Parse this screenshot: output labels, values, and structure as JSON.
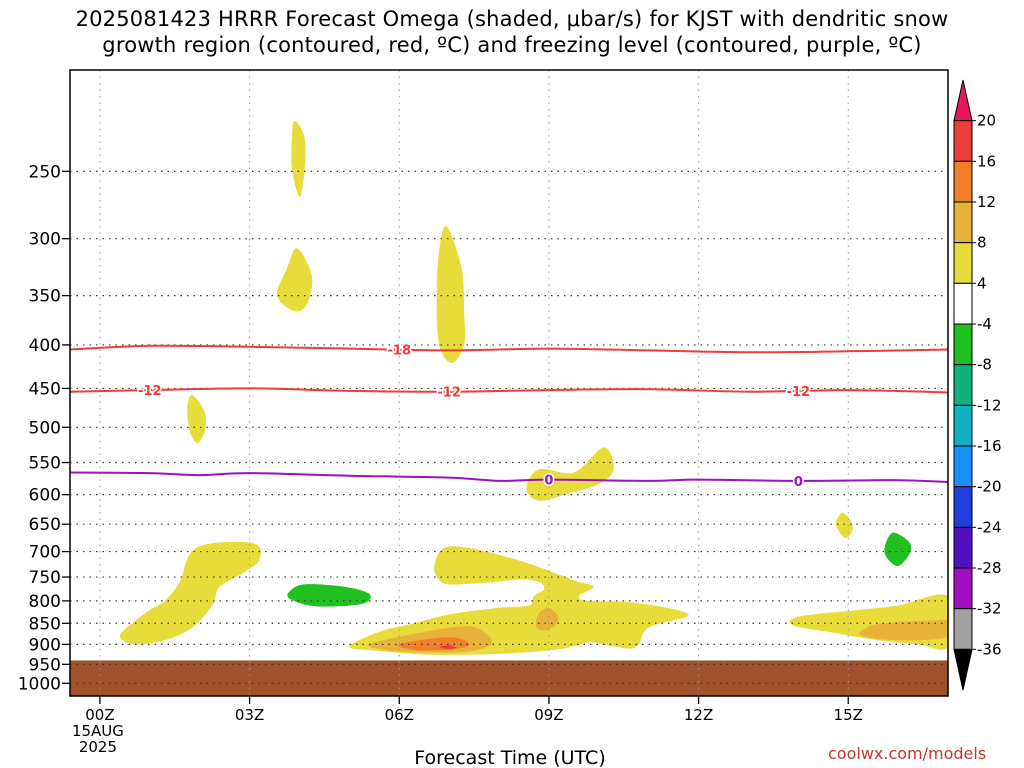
{
  "title_lines": [
    "2025081423 HRRR Forecast Omega (shaded, μbar/s) for KJST with dendritic snow",
    "growth region (contoured, red, ºC) and freezing level (contoured, purple, ºC)"
  ],
  "credit": "coolwx.com/models",
  "chart_data": {
    "type": "contour",
    "xlabel": "Forecast Time (UTC)",
    "x_ticks": [
      {
        "hour": 0,
        "label": "00Z",
        "sub": [
          "15AUG",
          "2025"
        ]
      },
      {
        "hour": 3,
        "label": "03Z"
      },
      {
        "hour": 6,
        "label": "06Z"
      },
      {
        "hour": 9,
        "label": "09Z"
      },
      {
        "hour": 12,
        "label": "12Z"
      },
      {
        "hour": 15,
        "label": "15Z"
      }
    ],
    "xlim": [
      -0.6,
      17
    ],
    "y_ticks": [
      250,
      300,
      350,
      400,
      450,
      500,
      550,
      600,
      650,
      700,
      750,
      800,
      850,
      900,
      950,
      1000
    ],
    "ylim_hPa": [
      190,
      1035
    ],
    "y_scale": "log-pressure",
    "grid": "dotted",
    "terrain": {
      "color": "#a0522d",
      "top_hPa": 940
    },
    "colorbar": {
      "labels": [
        "20",
        "16",
        "12",
        "8",
        "4",
        "-4",
        "-8",
        "-12",
        "-16",
        "-20",
        "-24",
        "-28",
        "-32",
        "-36"
      ],
      "colors": [
        "#e8175d",
        "#ee3b3b",
        "#f07f2a",
        "#e8b23a",
        "#e8dc3a",
        "#ffffff",
        "#20c020",
        "#10b07a",
        "#10b0c0",
        "#1a90ff",
        "#2040e0",
        "#5010c0",
        "#a010c0",
        "#a0a0a0",
        "#000000"
      ]
    },
    "omega_regions": [
      {
        "level": 4,
        "color": "#e8dc3a",
        "points": [
          [
            3.9,
            218
          ],
          [
            4.1,
            228
          ],
          [
            4.1,
            250
          ],
          [
            4.0,
            268
          ],
          [
            3.85,
            248
          ],
          [
            3.85,
            228
          ]
        ]
      },
      {
        "level": 4,
        "color": "#e8dc3a",
        "points": [
          [
            3.95,
            308
          ],
          [
            4.25,
            332
          ],
          [
            4.15,
            358
          ],
          [
            3.9,
            365
          ],
          [
            3.55,
            350
          ],
          [
            3.75,
            325
          ]
        ]
      },
      {
        "level": 4,
        "color": "#e8dc3a",
        "points": [
          [
            6.95,
            290
          ],
          [
            7.25,
            325
          ],
          [
            7.3,
            365
          ],
          [
            7.3,
            400
          ],
          [
            7.05,
            420
          ],
          [
            6.8,
            400
          ],
          [
            6.75,
            350
          ],
          [
            6.8,
            310
          ]
        ]
      },
      {
        "level": 4,
        "color": "#e8dc3a",
        "points": [
          [
            1.85,
            458
          ],
          [
            2.1,
            480
          ],
          [
            2.1,
            505
          ],
          [
            1.95,
            522
          ],
          [
            1.8,
            505
          ],
          [
            1.75,
            475
          ]
        ]
      },
      {
        "level": 4,
        "color": "#e8dc3a",
        "points": [
          [
            9.5,
            565
          ],
          [
            10.1,
            528
          ],
          [
            10.3,
            560
          ],
          [
            10.0,
            583
          ],
          [
            9.4,
            598
          ],
          [
            8.8,
            610
          ],
          [
            8.55,
            590
          ],
          [
            8.8,
            560
          ]
        ]
      },
      {
        "level": 4,
        "color": "#e8dc3a",
        "points": [
          [
            14.9,
            630
          ],
          [
            15.1,
            655
          ],
          [
            14.95,
            675
          ],
          [
            14.75,
            650
          ]
        ]
      },
      {
        "level": 4,
        "color": "#e8dc3a",
        "points": [
          [
            1.8,
            705
          ],
          [
            2.2,
            685
          ],
          [
            3.1,
            685
          ],
          [
            3.2,
            715
          ],
          [
            2.9,
            740
          ],
          [
            2.4,
            770
          ],
          [
            2.25,
            810
          ],
          [
            1.85,
            860
          ],
          [
            1.3,
            890
          ],
          [
            0.7,
            900
          ],
          [
            0.4,
            880
          ],
          [
            0.7,
            845
          ],
          [
            1.0,
            820
          ],
          [
            1.3,
            800
          ],
          [
            1.6,
            760
          ]
        ]
      },
      {
        "level": 4,
        "color": "#e8dc3a",
        "points": [
          [
            6.7,
            730
          ],
          [
            6.9,
            693
          ],
          [
            7.5,
            695
          ],
          [
            8.5,
            720
          ],
          [
            9.2,
            745
          ],
          [
            9.6,
            760
          ],
          [
            9.9,
            770
          ],
          [
            9.6,
            790
          ],
          [
            9.8,
            800
          ],
          [
            10.8,
            805
          ],
          [
            11.8,
            830
          ],
          [
            11.0,
            860
          ],
          [
            10.8,
            900
          ],
          [
            10.6,
            910
          ],
          [
            10.1,
            900
          ],
          [
            9.8,
            895
          ],
          [
            9.3,
            910
          ],
          [
            8.5,
            920
          ],
          [
            7.5,
            925
          ],
          [
            6.5,
            925
          ],
          [
            5.5,
            915
          ],
          [
            5.0,
            905
          ],
          [
            5.6,
            870
          ],
          [
            6.3,
            850
          ],
          [
            7.0,
            830
          ],
          [
            8.0,
            815
          ],
          [
            8.6,
            810
          ],
          [
            8.7,
            790
          ],
          [
            8.9,
            775
          ],
          [
            8.8,
            760
          ],
          [
            8.4,
            755
          ],
          [
            7.7,
            762
          ],
          [
            7.0,
            765
          ],
          [
            6.8,
            755
          ]
        ]
      },
      {
        "level": 4,
        "color": "#e8dc3a",
        "points": [
          [
            14.0,
            835
          ],
          [
            15.2,
            820
          ],
          [
            16.0,
            810
          ],
          [
            17.0,
            790
          ],
          [
            17.0,
            905
          ],
          [
            16.4,
            900
          ],
          [
            15.6,
            890
          ],
          [
            14.6,
            870
          ],
          [
            13.9,
            855
          ]
        ]
      },
      {
        "level": 8,
        "color": "#e8b23a",
        "points": [
          [
            8.8,
            828
          ],
          [
            9.0,
            815
          ],
          [
            9.2,
            840
          ],
          [
            9.0,
            865
          ],
          [
            8.75,
            860
          ]
        ]
      },
      {
        "level": 8,
        "color": "#e8b23a",
        "points": [
          [
            5.4,
            900
          ],
          [
            6.5,
            870
          ],
          [
            7.4,
            857
          ],
          [
            7.8,
            880
          ],
          [
            7.8,
            905
          ],
          [
            7.3,
            918
          ],
          [
            6.5,
            920
          ],
          [
            5.8,
            915
          ]
        ]
      },
      {
        "level": 8,
        "color": "#e8b23a",
        "points": [
          [
            15.3,
            865
          ],
          [
            15.7,
            850
          ],
          [
            16.8,
            843
          ],
          [
            17.0,
            845
          ],
          [
            17.0,
            880
          ],
          [
            16.4,
            890
          ],
          [
            15.7,
            888
          ],
          [
            15.25,
            878
          ]
        ]
      },
      {
        "level": 12,
        "color": "#f07f2a",
        "points": [
          [
            6.0,
            900
          ],
          [
            6.7,
            885
          ],
          [
            7.2,
            885
          ],
          [
            7.4,
            900
          ],
          [
            7.2,
            910
          ],
          [
            6.6,
            915
          ],
          [
            6.2,
            912
          ]
        ]
      },
      {
        "level": 16,
        "color": "#ee3b3b",
        "points": [
          [
            6.8,
            906
          ],
          [
            7.0,
            902
          ],
          [
            7.15,
            908
          ],
          [
            7.0,
            912
          ]
        ]
      },
      {
        "level": -8,
        "color": "#20c020",
        "points": [
          [
            3.8,
            780
          ],
          [
            4.1,
            765
          ],
          [
            4.9,
            770
          ],
          [
            5.4,
            785
          ],
          [
            5.3,
            805
          ],
          [
            4.7,
            812
          ],
          [
            4.2,
            810
          ],
          [
            3.8,
            795
          ]
        ]
      },
      {
        "level": -8,
        "color": "#20c020",
        "points": [
          [
            15.9,
            665
          ],
          [
            16.2,
            680
          ],
          [
            16.25,
            700
          ],
          [
            16.0,
            728
          ],
          [
            15.75,
            708
          ],
          [
            15.75,
            685
          ]
        ]
      }
    ],
    "contours": [
      {
        "label": "-18",
        "color": "#ee3b3b",
        "label_hours": [
          6.0
        ],
        "points": [
          [
            -0.6,
            405
          ],
          [
            1,
            401
          ],
          [
            3,
            402
          ],
          [
            5,
            404
          ],
          [
            7,
            406
          ],
          [
            9,
            404
          ],
          [
            11,
            406
          ],
          [
            13,
            408
          ],
          [
            15,
            407
          ],
          [
            17,
            405
          ]
        ]
      },
      {
        "label": "-12",
        "color": "#ee3b3b",
        "label_hours": [
          1.0,
          7.0,
          14.0
        ],
        "points": [
          [
            -0.6,
            454
          ],
          [
            1,
            452
          ],
          [
            3,
            450
          ],
          [
            5,
            453
          ],
          [
            7,
            454
          ],
          [
            9,
            452
          ],
          [
            11,
            451
          ],
          [
            13,
            454
          ],
          [
            15,
            452
          ],
          [
            17,
            455
          ]
        ]
      },
      {
        "label": "0",
        "color": "#9b10c8",
        "label_hours": [
          9.0,
          14.0
        ],
        "points": [
          [
            -0.6,
            565
          ],
          [
            1,
            566
          ],
          [
            2,
            569
          ],
          [
            3,
            566
          ],
          [
            5,
            570
          ],
          [
            7,
            573
          ],
          [
            8,
            578
          ],
          [
            9,
            576
          ],
          [
            11,
            578
          ],
          [
            12,
            576
          ],
          [
            14,
            578
          ],
          [
            16,
            577
          ],
          [
            17,
            580
          ]
        ]
      }
    ]
  }
}
